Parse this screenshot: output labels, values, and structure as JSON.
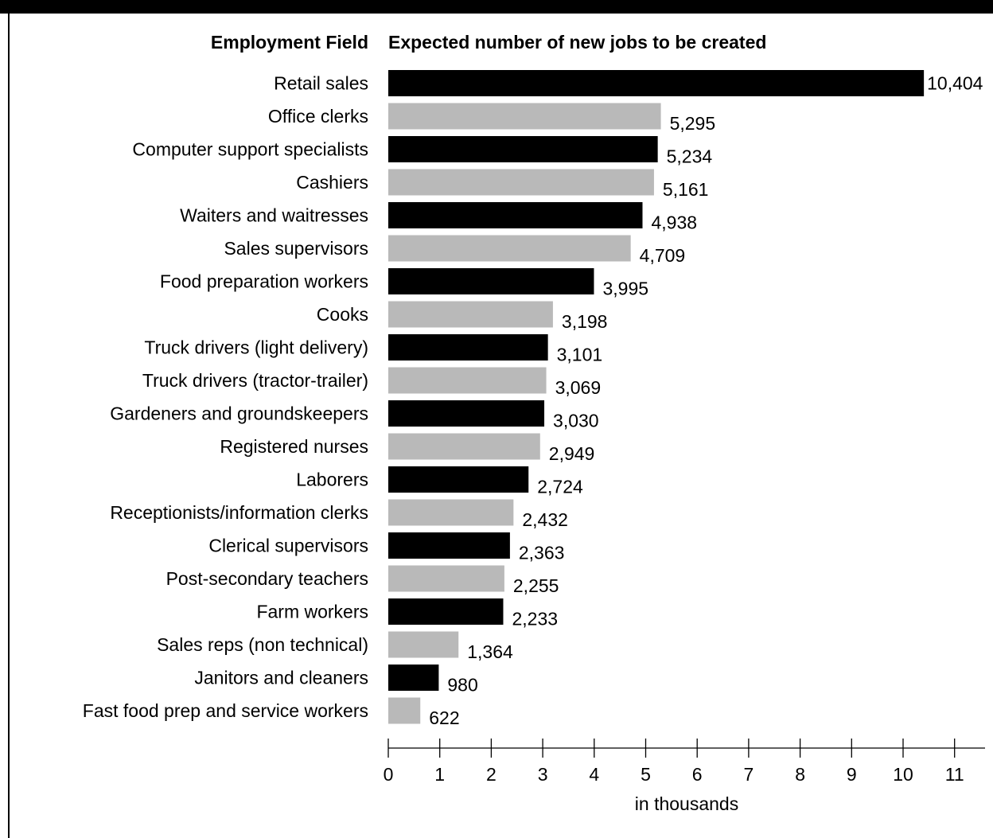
{
  "colors": {
    "primary_bar": "#000000",
    "alternate_bar": "#b9b9b9",
    "frame": "#000000"
  },
  "chart_data": {
    "type": "bar",
    "orientation": "horizontal",
    "category_header": "Employment Field",
    "title": "Expected number of new jobs to be created",
    "xlabel": "in thousands",
    "ylabel": "",
    "xlim": [
      0,
      11
    ],
    "xticks": [
      0,
      1,
      2,
      3,
      4,
      5,
      6,
      7,
      8,
      9,
      10,
      11
    ],
    "grid": false,
    "legend": "none",
    "categories": [
      "Retail sales",
      "Office clerks",
      "Computer support specialists",
      "Cashiers",
      "Waiters and waitresses",
      "Sales supervisors",
      "Food preparation workers",
      "Cooks",
      "Truck drivers (light delivery)",
      "Truck drivers (tractor-trailer)",
      "Gardeners and groundskeepers",
      "Registered nurses",
      "Laborers",
      "Receptionists/information clerks",
      "Clerical supervisors",
      "Post-secondary teachers",
      "Farm workers",
      "Sales reps (non technical)",
      "Janitors and cleaners",
      "Fast food prep and service workers"
    ],
    "values": [
      10404,
      5295,
      5234,
      5161,
      4938,
      4709,
      3995,
      3198,
      3101,
      3069,
      3030,
      2949,
      2724,
      2432,
      2363,
      2255,
      2233,
      1364,
      980,
      622
    ],
    "value_labels": [
      "10,404",
      "5,295",
      "5,234",
      "5,161",
      "4,938",
      "4,709",
      "3,995",
      "3,198",
      "3,101",
      "3,069",
      "3,030",
      "2,949",
      "2,724",
      "2,432",
      "2,363",
      "2,255",
      "2,233",
      "1,364",
      "980",
      "622"
    ]
  }
}
